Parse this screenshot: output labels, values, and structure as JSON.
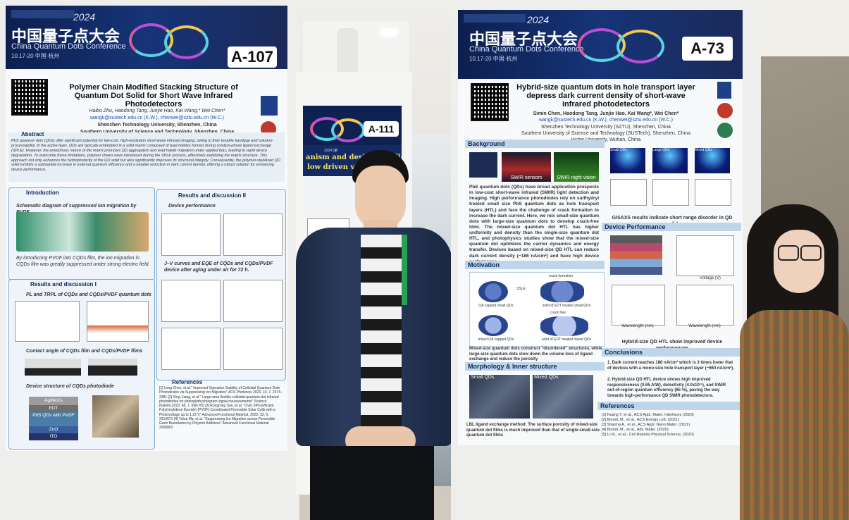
{
  "poster_left": {
    "conf_cn": "中国量子点大会",
    "conf_en": "China Quantum Dots Conference",
    "year": "2024",
    "date": "10.17-20 中国·杭州",
    "board": "A-107",
    "title": "Polymer Chain Modified Stacking Structure of Quantum Dot Solid for Short Wave Infrared Photodetectors",
    "authors": "Haibo Zhu, Haodong Tang, Junjie Hao, Kai Wang,* Wei Chen*",
    "emails": "wangk@sustech.edu.cn (K.W.), chenwei@sztu.edu.cn (W.C.)",
    "affil1": "Shenzhen Technology University, Shenzhen, China",
    "affil2": "Southern University of Science and Technology, Shenzhen, China",
    "abstract_h": "Abstract",
    "abstract": "PbS quantum dots (QDs) offer significant potential for low-cost, high-resolution short-wave infrared imaging, owing to their tunable bandgap and solution-processability. In the active layer, QDs are typically embedded in a solid matrix composed of lead halides formed during solution-phase ligand exchange (SPLE). However, the amorphous nature of the matrix promotes QD aggregation and lead halide migration under applied bias, leading to rapid device degradation. To overcome these limitations, polymer chains were introduced during the SPLE process, effectively stabilizing the matrix structure. This approach not only enhances the hydrophobicity of the QD solid but also significantly improves its structural integrity. Consequently, the polymer-stabilized QD solid exhibits a substantial increase in external quantum efficiency and a notable reduction in dark current density, offering a robust solution for enhancing device performance.",
    "intro_h": "Introduction",
    "intro_sub": "Schematic diagram of suppressed ion migration by PVDF",
    "intro_text": "By introducing PVDF into CQDs film, the ion migration in CQDs film was greatly suppressed under strong electric field.",
    "rd1_h": "Results and discussion I",
    "rd1_a": "PL and TRPL of CQDs and CQDs/PVDF quantum dots",
    "rd1_b": "Contact angle of CQDs film and CQDs/PVDF films",
    "rd1_c": "Device structure of CQDs photodiode",
    "stack": [
      "Ag/MoOₓ",
      "EDT",
      "PbS QDs with PVDF",
      "ZnO",
      "ITO"
    ],
    "rd2_h": "Results and discussion II",
    "rd2_a": "Device performance",
    "rd2_b": "J–V curves and EQE of CQDs and CQDs/PVDF device after aging under air for 72 h.",
    "refs_h": "References",
    "refs": "[1] Long Chen, et al.\" Improved Operation Stability of Colloidal Quantum Dots Photodiodes via Suppressing Ion Migration\" ACS Photonics 2023, 10, 7, 2374–2381 [2] Xinyi Liang, et al.\" Large-area flexible colloidal-quantum-dot infrared photodiodes for photoplethysmogram signal measurements\" Science Bulletin,2023, 68, 7, 698-705 [3] Rongrong Sun, et al. \"Over 24% Efficient Poly(vinylidene fluoride) (PVDF)-Coordinated Perovskite Solar Cells with a Photovoltage up to 1.22 V\" Advanced Functional Material, 2022, 33, 6, 2210071 [4] Yuhui Ma, et al. \"Suppressing Ion Migration across Perovskite Grain Boundaries by Polymer Additives\" Advanced Functional Material 2006802"
  },
  "poster_mid": {
    "board": "A-111",
    "title_fragment": "anism and design of efficie",
    "title_fragment2": "low driven voltag",
    "year_fragment": "2024 (第"
  },
  "poster_right": {
    "conf_cn": "中国量子点大会",
    "conf_en": "China Quantum Dots Conference",
    "year": "2024",
    "date": "10.17-20 中国·杭州",
    "board": "A-73",
    "title": "Hybrid-size quantum dots in hole transport layer depress dark current density of short-wave infrared photodetectors",
    "authors": "Simin Chen, Haodong Tang, Junjie Hao, Kai Wang*, Wei Chen*",
    "emails": "wangk@sustech.edu.cn (K.W.), chenwei@sztu.edu.cn (W.C.)",
    "affil": "Shenzhen Technology University (SZTU), Shenzhen, China",
    "affil2": "Southern University of Science and Technology (SUSTech), Shenzhen, China",
    "affil3": "Hubei University, Wuhan, China",
    "background_h": "Background",
    "img_labels": [
      "SWIR sensors",
      "SWIR night vision"
    ],
    "background_text": "PbS quantum dots (QDs) have broad application prospects in low-cost short-wave infrared (SWIR) light detection and imaging. High performance photodiodes rely on sulfhydryl treated small size PbS quantum dots as hole transport layers (HTL) and face the challenge of crack formation to increase the dark current. Here, we mix small-size quantum dots with large-size quantum dots to develop crack-free html. The mixed-size quantum dot HTL has higher uniformity and density than the single-size quantum dot HTL, and photophysics studies show that the mixed-size quantum dot optimizes the carrier dynamics and energy transfer. Devices based on mixed-size QD HTL can reduce dark current density (~186 nA/cm²) and have high device performance.",
    "gisaxs_labels": [
      "Small QDs",
      "Large QDs",
      "Mixed QDs"
    ],
    "gisaxs_caption": "GISAXS results indicate short range disorder in QD solid",
    "devperf_h": "Device Performance",
    "devperf_caption": "Hybrid-size QD HTL show improved device performances",
    "motivation_h": "Motivation",
    "motiv_labels": [
      "OA capped small QDs",
      "SSLE",
      "crack formation",
      "solid of EDT treated small QDs",
      "mixed OA capped QDs",
      "crack free",
      "solid of EDT treated mixed QDs"
    ],
    "motiv_text": "Mixed-size quantum dots construct \"disordered\" structures, while large-size quantum dots slow down the volume loss of ligand exchange and reduce the porosity",
    "morph_h": "Morphology & Inner structure",
    "morph_labels": [
      "Small QDs",
      "Mixed QDs"
    ],
    "morph_text": "LBL ligand exchange method: The surface porosity of mixed-size quantum dot films is much improved than that of single-small-size quantum dot films",
    "conclusions_h": "Conclusions",
    "conclusions": [
      "Dark current reaches 186 nA/cm² which is 3 times lower that of devices with a mono-size hole transport layer (~660 nA/cm²).",
      "Hybrid-size QD HTL device shows high improved responsiveness (0.65 A/W), detectivity (4.0x10¹¹), and SWIR out-of-region quantum efficiency (65 %), paving the way towards high-performance QD SWIR photodetectors."
    ],
    "references_h": "References",
    "references": [
      "[1] Huang T, et al., ACS Appl. Mater. Interfaces (2023)",
      "[2] Biondi, M., et al., ACS Energy Lett. (2021)",
      "[3] Sharma A., et al., ACS Appl. Nano Mater. (2021)",
      "[4] Biondi, M., et al., Adv. Mater. (2020)",
      "[5] Lü K., et al., Cell Reports Physical Science, (2020)"
    ],
    "axis_voltage": "Voltage (V)",
    "axis_wavelength": "Wavelength (nm)"
  },
  "colors": {
    "banner": "#163477",
    "section": "#bfd6ea",
    "badge_bg": "#ffffff"
  }
}
